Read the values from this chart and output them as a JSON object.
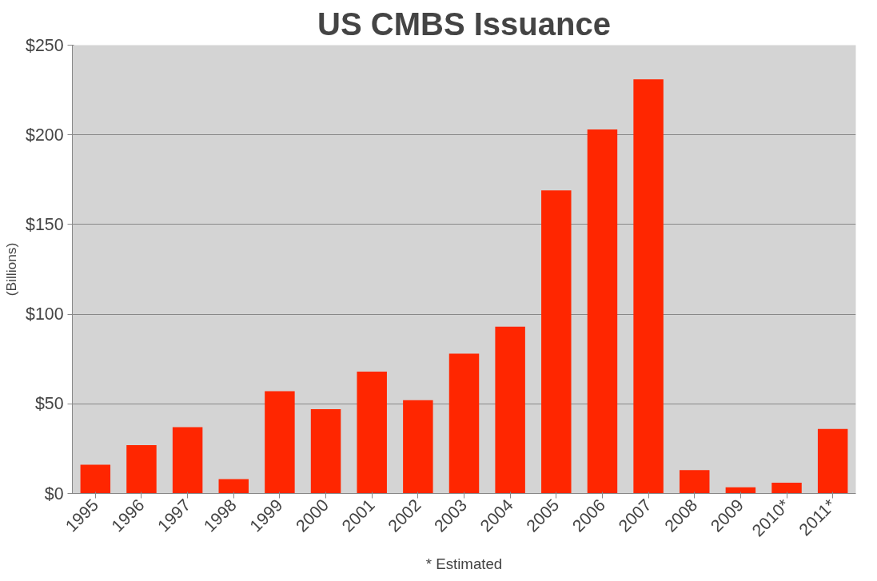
{
  "chart_data": {
    "type": "bar",
    "title": "US CMBS Issuance",
    "ylabel": "(Billions)",
    "categories": [
      "1995",
      "1996",
      "1997",
      "1998",
      "1999",
      "2000",
      "2001",
      "2002",
      "2003",
      "2004",
      "2005",
      "2006",
      "2007",
      "2008",
      "2009",
      "2010*",
      "2011*"
    ],
    "values": [
      16,
      27,
      37,
      8,
      57,
      47,
      68,
      52,
      78,
      93,
      169,
      203,
      231,
      13,
      3.5,
      6,
      36
    ],
    "color": "#ff2600",
    "ylim": [
      0,
      250
    ],
    "yticks": [
      {
        "value": 0,
        "label": "$0"
      },
      {
        "value": 50,
        "label": "$50"
      },
      {
        "value": 100,
        "label": "$100"
      },
      {
        "value": 150,
        "label": "$150"
      },
      {
        "value": 200,
        "label": "$200"
      },
      {
        "value": 250,
        "label": "$250"
      }
    ],
    "grid": "y",
    "annotations": [
      "* Estimated"
    ]
  }
}
